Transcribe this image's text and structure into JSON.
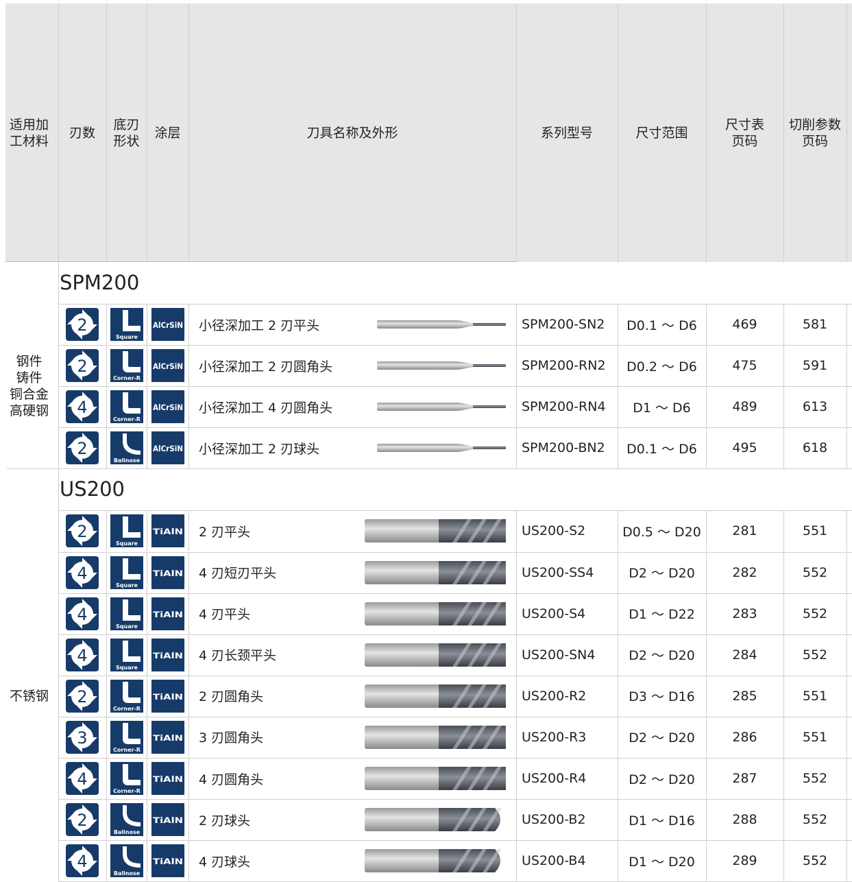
{
  "header": [
    [
      "适用加",
      "工材料"
    ],
    [
      "刃数"
    ],
    [
      "底刃",
      "形状"
    ],
    [
      "涂层"
    ],
    [
      "刀具名称及外形"
    ],
    [
      "系列型号"
    ],
    [
      "尺寸范围"
    ],
    [
      "尺寸表",
      "页码"
    ],
    [
      "切削参数",
      "页码"
    ]
  ],
  "sections": [
    {
      "title": "SPM200",
      "material": [
        "钢件",
        "铸件",
        "铜合金",
        "高硬钢"
      ],
      "rows": [
        {
          "flutes": 2,
          "shape": "Square",
          "coating": "AlCrSiN",
          "name": "小径深加工 2 刃平头",
          "series": "SPM200-SN2",
          "size": "D0.1 ～ D6",
          "size_page": 469,
          "param_page": 581
        },
        {
          "flutes": 2,
          "shape": "Corner-R",
          "coating": "AlCrSiN",
          "name": "小径深加工 2 刃圆角头",
          "series": "SPM200-RN2",
          "size": "D0.2 ～ D6",
          "size_page": 475,
          "param_page": 591
        },
        {
          "flutes": 4,
          "shape": "Corner-R",
          "coating": "AlCrSiN",
          "name": "小径深加工 4 刃圆角头",
          "series": "SPM200-RN4",
          "size": "D1 ～ D6",
          "size_page": 489,
          "param_page": 613
        },
        {
          "flutes": 2,
          "shape": "Ballnose",
          "coating": "AlCrSiN",
          "name": "小径深加工 2 刃球头",
          "series": "SPM200-BN2",
          "size": "D0.1 ～ D6",
          "size_page": 495,
          "param_page": 618
        }
      ]
    },
    {
      "title": "US200",
      "material": [
        "不锈钢"
      ],
      "rows": [
        {
          "flutes": 2,
          "shape": "Square",
          "coating": "TiAlN",
          "name": "2 刃平头",
          "series": "US200-S2",
          "size": "D0.5 ～ D20",
          "size_page": 281,
          "param_page": 551
        },
        {
          "flutes": 4,
          "shape": "Square",
          "coating": "TiAlN",
          "name": "4 刃短刃平头",
          "series": "US200-SS4",
          "size": "D2 ～ D20",
          "size_page": 282,
          "param_page": 552
        },
        {
          "flutes": 4,
          "shape": "Square",
          "coating": "TiAlN",
          "name": "4 刃平头",
          "series": "US200-S4",
          "size": "D1 ～ D22",
          "size_page": 283,
          "param_page": 552
        },
        {
          "flutes": 4,
          "shape": "Square",
          "coating": "TiAlN",
          "name": "4 刃长颈平头",
          "series": "US200-SN4",
          "size": "D2 ～ D20",
          "size_page": 284,
          "param_page": 552
        },
        {
          "flutes": 2,
          "shape": "Corner-R",
          "coating": "TiAlN",
          "name": "2 刃圆角头",
          "series": "US200-R2",
          "size": "D3 ～ D16",
          "size_page": 285,
          "param_page": 551
        },
        {
          "flutes": 3,
          "shape": "Corner-R",
          "coating": "TiAlN",
          "name": "3 刃圆角头",
          "series": "US200-R3",
          "size": "D2 ～ D20",
          "size_page": 286,
          "param_page": 551
        },
        {
          "flutes": 4,
          "shape": "Corner-R",
          "coating": "TiAlN",
          "name": "4 刃圆角头",
          "series": "US200-R4",
          "size": "D2 ～ D20",
          "size_page": 287,
          "param_page": 552
        },
        {
          "flutes": 2,
          "shape": "Ballnose",
          "coating": "TiAlN",
          "name": "2 刃球头",
          "series": "US200-B2",
          "size": "D1 ～ D16",
          "size_page": 288,
          "param_page": 552
        },
        {
          "flutes": 4,
          "shape": "Ballnose",
          "coating": "TiAlN",
          "name": "4 刃球头",
          "series": "US200-B4",
          "size": "D1 ～ D20",
          "size_page": 289,
          "param_page": 552
        }
      ]
    }
  ]
}
